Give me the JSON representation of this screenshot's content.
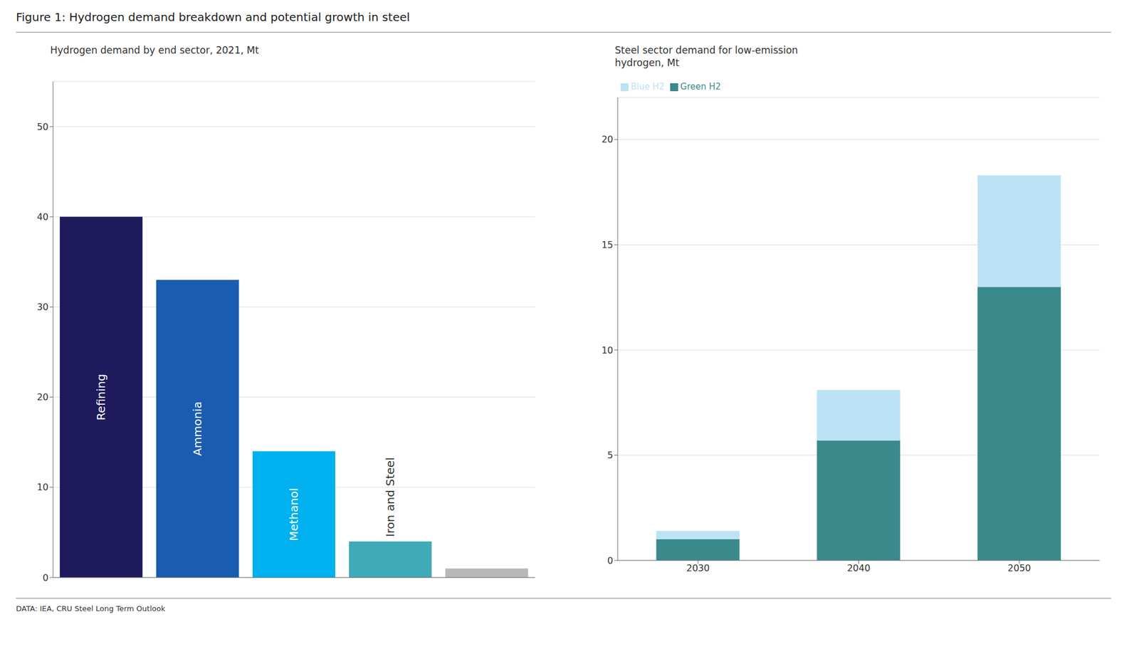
{
  "title": "Figure 1: Hydrogen demand breakdown and potential growth in steel",
  "annotations": [
    "DATA: IEA, CRU Steel Long Term Outlook"
  ],
  "chart_data": [
    {
      "type": "bar",
      "title": "Hydrogen demand by end sector, 2021, Mt",
      "categories": [
        "Refining",
        "Ammonia",
        "Methanol",
        "Iron and Steel",
        null
      ],
      "values": [
        40,
        33,
        14,
        4,
        1
      ],
      "colors": [
        "#1e1a5c",
        "#1a5cb0",
        "#00b0ef",
        "#3faab8",
        "#b8b8b8"
      ],
      "ylim": [
        0,
        55
      ],
      "yticks": [
        0,
        10,
        20,
        30,
        40,
        50
      ],
      "grid": true,
      "tick_labels": "y"
    },
    {
      "type": "bar",
      "title": "Steel sector demand for low-emission\nhydrogen, Mt",
      "categories": [
        "2030",
        "2040",
        "2050"
      ],
      "series": [
        {
          "name": "Green H2",
          "color": "#3a8a8c",
          "values": [
            1.0,
            5.7,
            13.0
          ]
        },
        {
          "name": "Blue H2",
          "color": "#bce3f5",
          "values": [
            0.4,
            2.4,
            5.3
          ]
        }
      ],
      "stacked": true,
      "ylim": [
        0,
        22
      ],
      "yticks": [
        0,
        5,
        10,
        15,
        20
      ],
      "grid": true,
      "legend": "upper left"
    }
  ]
}
